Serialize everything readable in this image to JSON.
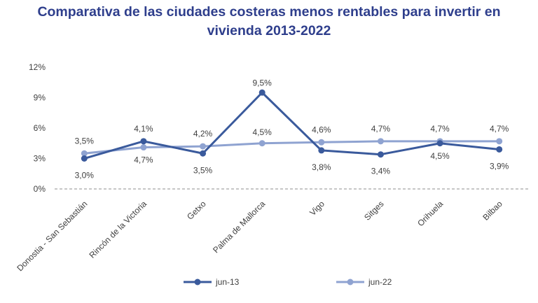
{
  "chart_data": {
    "type": "line",
    "title_line1": "Comparativa de las ciudades costeras menos rentables para invertir en",
    "title_line2": "vivienda 2013-2022",
    "categories": [
      "Donostia - San Sebastián",
      "Rincón de la Victoria",
      "Getxo",
      "Palma de Mallorca",
      "Vigo",
      "Sitges",
      "Orihuela",
      "Bilbao"
    ],
    "y_ticks": [
      "0%",
      "3%",
      "6%",
      "9%",
      "12%"
    ],
    "ylim": [
      0,
      12
    ],
    "series": [
      {
        "name": "jun-13",
        "color": "#3a5a9c",
        "values": [
          3.0,
          4.7,
          3.5,
          9.5,
          3.8,
          3.4,
          4.5,
          3.9
        ],
        "labels": [
          "3,0%",
          "4,7%",
          "3,5%",
          "9,5%",
          "3,8%",
          "3,4%",
          "4,5%",
          "3,9%"
        ]
      },
      {
        "name": "jun-22",
        "color": "#8fa3d1",
        "values": [
          3.5,
          4.1,
          4.2,
          4.5,
          4.6,
          4.7,
          4.7,
          4.7
        ],
        "labels": [
          "3,5%",
          "4,1%",
          "4,2%",
          "4,5%",
          "4,6%",
          "4,7%",
          "4,7%",
          "4,7%"
        ]
      }
    ],
    "legend_position": "bottom",
    "grid": false
  }
}
